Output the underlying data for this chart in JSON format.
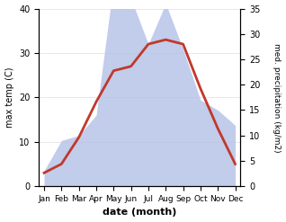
{
  "months": [
    "Jan",
    "Feb",
    "Mar",
    "Apr",
    "May",
    "Jun",
    "Jul",
    "Aug",
    "Sep",
    "Oct",
    "Nov",
    "Dec"
  ],
  "temp": [
    3,
    5,
    11,
    19,
    26,
    27,
    32,
    33,
    32,
    22,
    13,
    5
  ],
  "precip": [
    3,
    9,
    10,
    14,
    40,
    37,
    28,
    36,
    27,
    17,
    15,
    12
  ],
  "temp_color": "#c0392b",
  "precip_fill_color": "#b8c4e8",
  "ylim_left": [
    0,
    40
  ],
  "ylim_right": [
    0,
    35
  ],
  "yticks_left": [
    0,
    10,
    20,
    30,
    40
  ],
  "yticks_right": [
    0,
    5,
    10,
    15,
    20,
    25,
    30,
    35
  ],
  "xlabel": "date (month)",
  "ylabel_left": "max temp (C)",
  "ylabel_right": "med. precipitation (kg/m2)",
  "bg_color": "#ffffff"
}
